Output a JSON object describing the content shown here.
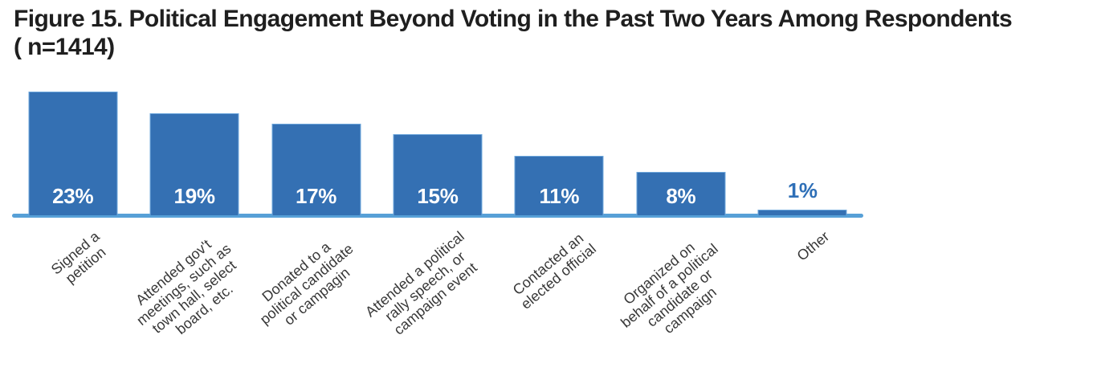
{
  "page": {
    "background": "#FFFFFF"
  },
  "title": {
    "text": "Figure 15. Political Engagement Beyond Voting in the Past Two Years Among Respondents\n( n=1414)",
    "color": "#1F1F1F"
  },
  "chart_data": {
    "type": "bar",
    "title": "Figure 15. Political Engagement Beyond Voting in the Past Two Years Among Respondents ( n=1414)",
    "sample_size_note": "( n=1414)",
    "categories": [
      "Signed a petition",
      "Attended gov't meetings, such as town hall, select board, etc.",
      "Donated to a political candidate or campagin",
      "Attended a political rally speech, or campaign event",
      "Contacted an elected official",
      "Organized on behalf of a political candidate or campaign",
      "Other"
    ],
    "category_lines": [
      [
        "Signed a",
        "petition"
      ],
      [
        "Attended gov't",
        "meetings, such as",
        "town hall, select",
        "board, etc."
      ],
      [
        "Donated to a",
        "political candidate",
        "or campagin"
      ],
      [
        "Attended a political",
        "rally speech, or",
        "campaign event"
      ],
      [
        "Contacted an",
        "elected official"
      ],
      [
        "Organized on",
        "behalf of a political",
        "candidate or",
        "campaign"
      ],
      [
        "Other"
      ]
    ],
    "values": [
      23,
      19,
      17,
      15,
      11,
      8,
      1
    ],
    "value_labels": [
      "23%",
      "19%",
      "17%",
      "15%",
      "11%",
      "8%",
      "1%"
    ],
    "unit": "%",
    "xlabel": "",
    "ylabel": "",
    "ylim": [
      0,
      25
    ],
    "grid": false,
    "legend": false,
    "bar_color": "#3470B3",
    "bar_edge_color": "#6FA8DC",
    "axis_line_color": "#57A0D7",
    "value_label_color_inside": "#FFFFFF",
    "value_label_color_outside": "#2E6FB7",
    "tick_label_color": "#383838",
    "title_color": "#1F1F1F"
  }
}
